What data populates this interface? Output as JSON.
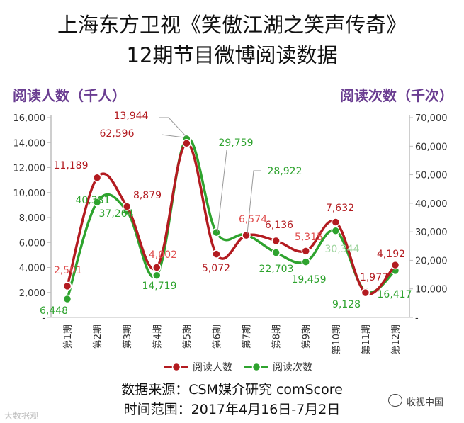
{
  "title_line1": "上海东方卫视《笑傲江湖之笑声传奇》",
  "title_line2": "12期节目微博阅读数据",
  "source_line": "数据来源：CSM媒介研究 comScore",
  "date_line": "时间范围：2017年4月16日-7月2日",
  "watermark_left": "大数据观",
  "watermark_right": "收视中国",
  "chart_data": {
    "type": "line",
    "categories": [
      "第1期",
      "第2期",
      "第3期",
      "第4期",
      "第5期",
      "第6期",
      "第7期",
      "第8期",
      "第9期",
      "第10期",
      "第11期",
      "第12期"
    ],
    "y_left_label": "阅读人数（千人）",
    "y_right_label": "阅读次数（千次）",
    "y_left_ticks": [
      "-",
      "2,000",
      "4,000",
      "6,000",
      "8,000",
      "10,000",
      "12,000",
      "14,000",
      "16,000"
    ],
    "y_right_ticks": [
      "-",
      "10,000",
      "20,000",
      "30,000",
      "40,000",
      "50,000",
      "60,000",
      "70,000"
    ],
    "ylim_left": [
      0,
      16000
    ],
    "ylim_right": [
      0,
      70000
    ],
    "series": [
      {
        "name": "阅读人数",
        "axis": "left",
        "color": "#b31b20",
        "values": [
          2501,
          11189,
          8879,
          4002,
          13944,
          5072,
          6574,
          6136,
          5315,
          7632,
          1977,
          4192
        ],
        "labels": [
          "2,501",
          "11,189",
          "8,879",
          "4,002",
          "13,944",
          "5,072",
          "6,574",
          "6,136",
          "5,315",
          "7,632",
          "1,977",
          "4,192"
        ]
      },
      {
        "name": "阅读次数",
        "axis": "right",
        "color": "#2ea32e",
        "values": [
          6448,
          40381,
          37264,
          14719,
          62596,
          29759,
          28922,
          22703,
          19459,
          30344,
          9128,
          16417
        ],
        "labels": [
          "6,448",
          "40,381",
          "37,264",
          "14,719",
          "62,596",
          "29,759",
          "28,922",
          "22,703",
          "19,459",
          "30,344",
          "9,128",
          "16,417"
        ]
      }
    ],
    "legend_position": "bottom",
    "grid": false
  }
}
